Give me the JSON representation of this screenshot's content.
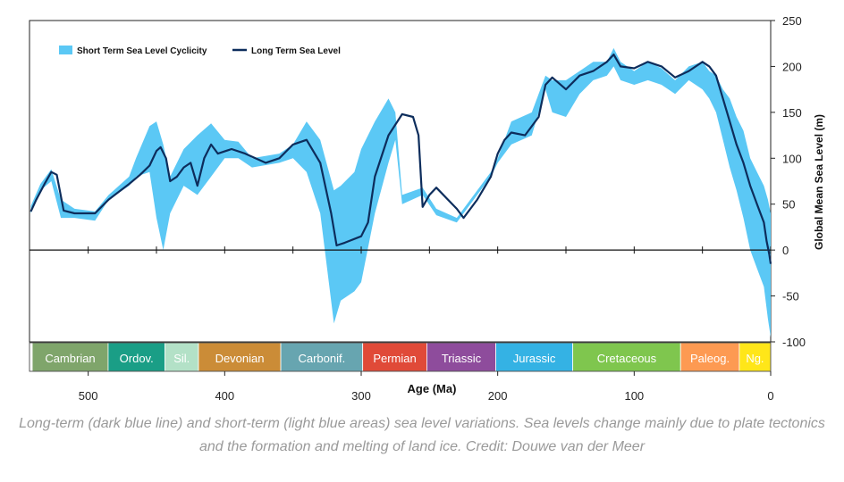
{
  "chart_data": {
    "type": "area",
    "xlabel": "Age (Ma)",
    "ylabel": "Global Mean Sea Level (m)",
    "xlim": [
      543,
      0
    ],
    "ylim": [
      -100,
      250
    ],
    "x_ticks": [
      500,
      400,
      300,
      200,
      100,
      0
    ],
    "y_ticks": [
      250,
      200,
      150,
      100,
      50,
      0,
      -50,
      -100
    ],
    "legend_position": "top-left",
    "legend": [
      "Short Term Sea Level Cyclicity",
      "Long Term Sea Level"
    ],
    "colors": {
      "band": "#5bc8f5",
      "line": "#0d2d5c"
    },
    "series": [
      {
        "name": "Short Term Sea Level Cyclicity",
        "kind": "band",
        "x": [
          542,
          535,
          527,
          520,
          510,
          495,
          485,
          470,
          465,
          455,
          450,
          445,
          440,
          430,
          420,
          410,
          400,
          390,
          380,
          360,
          350,
          340,
          330,
          320,
          315,
          305,
          300,
          290,
          280,
          275,
          270,
          255,
          245,
          230,
          225,
          205,
          200,
          190,
          175,
          165,
          160,
          150,
          140,
          130,
          120,
          115,
          110,
          100,
          90,
          80,
          70,
          60,
          50,
          45,
          40,
          35,
          30,
          25,
          20,
          15,
          10,
          5,
          2,
          0
        ],
        "upper": [
          48,
          72,
          88,
          55,
          45,
          42,
          60,
          80,
          100,
          135,
          140,
          115,
          80,
          110,
          125,
          138,
          120,
          118,
          100,
          105,
          115,
          140,
          120,
          65,
          70,
          85,
          110,
          140,
          165,
          150,
          60,
          68,
          45,
          35,
          45,
          85,
          100,
          140,
          150,
          190,
          185,
          185,
          195,
          205,
          205,
          220,
          205,
          195,
          205,
          198,
          185,
          200,
          205,
          195,
          190,
          175,
          165,
          145,
          130,
          100,
          85,
          70,
          55,
          40
        ],
        "lower": [
          40,
          65,
          75,
          35,
          35,
          32,
          55,
          70,
          80,
          85,
          35,
          0,
          40,
          70,
          60,
          80,
          100,
          100,
          90,
          95,
          100,
          85,
          40,
          -80,
          -55,
          -45,
          -35,
          40,
          95,
          120,
          50,
          60,
          38,
          30,
          40,
          80,
          95,
          115,
          125,
          175,
          150,
          145,
          170,
          185,
          190,
          200,
          185,
          180,
          185,
          180,
          170,
          185,
          175,
          165,
          150,
          120,
          90,
          65,
          35,
          0,
          -20,
          -40,
          -75,
          -95
        ]
      },
      {
        "name": "Long Term Sea Level",
        "kind": "line",
        "x": [
          542,
          538,
          532,
          527,
          523,
          518,
          510,
          495,
          485,
          470,
          462,
          455,
          450,
          447,
          443,
          440,
          435,
          430,
          425,
          420,
          415,
          410,
          405,
          395,
          385,
          370,
          360,
          350,
          340,
          330,
          322,
          318,
          312,
          300,
          295,
          290,
          280,
          270,
          262,
          258,
          255,
          250,
          245,
          230,
          225,
          215,
          205,
          200,
          195,
          190,
          180,
          170,
          165,
          160,
          150,
          140,
          130,
          120,
          115,
          110,
          100,
          90,
          80,
          70,
          60,
          50,
          45,
          40,
          35,
          30,
          25,
          20,
          15,
          10,
          5,
          3,
          1,
          0
        ],
        "y": [
          42,
          55,
          72,
          85,
          82,
          43,
          40,
          40,
          55,
          72,
          82,
          92,
          108,
          112,
          100,
          75,
          80,
          90,
          95,
          70,
          100,
          115,
          105,
          110,
          105,
          95,
          100,
          115,
          120,
          95,
          40,
          5,
          8,
          15,
          30,
          80,
          125,
          148,
          145,
          125,
          47,
          60,
          68,
          45,
          35,
          55,
          80,
          105,
          120,
          128,
          125,
          145,
          180,
          188,
          175,
          190,
          195,
          205,
          213,
          200,
          198,
          205,
          200,
          188,
          195,
          205,
          200,
          190,
          165,
          140,
          115,
          95,
          70,
          50,
          30,
          10,
          -5,
          -15
        ]
      }
    ],
    "periods": [
      {
        "label": "Cambrian",
        "start": 541,
        "end": 485.4,
        "color": "#7fa56b"
      },
      {
        "label": "Ordov.",
        "start": 485.4,
        "end": 443.8,
        "color": "#1a9e86"
      },
      {
        "label": "Sil.",
        "start": 443.8,
        "end": 419.2,
        "color": "#b3e1c7"
      },
      {
        "label": "Devonian",
        "start": 419.2,
        "end": 358.9,
        "color": "#cb8c37"
      },
      {
        "label": "Carbonif.",
        "start": 358.9,
        "end": 298.9,
        "color": "#67a5b0"
      },
      {
        "label": "Permian",
        "start": 298.9,
        "end": 251.9,
        "color": "#e04a38"
      },
      {
        "label": "Triassic",
        "start": 251.9,
        "end": 201.4,
        "color": "#8e4c9c"
      },
      {
        "label": "Jurassic",
        "start": 201.4,
        "end": 145,
        "color": "#34b2e4"
      },
      {
        "label": "Cretaceous",
        "start": 145,
        "end": 66,
        "color": "#7fc64e"
      },
      {
        "label": "Paleog.",
        "start": 66,
        "end": 23,
        "color": "#fd9a52"
      },
      {
        "label": "Ng.",
        "start": 23,
        "end": 0,
        "color": "#ffe619"
      }
    ]
  },
  "caption": "Long-term (dark blue line) and short-term (light blue areas) sea level variations. Sea levels change mainly due to plate tectonics and the formation and melting of land ice. Credit: Douwe van der Meer"
}
